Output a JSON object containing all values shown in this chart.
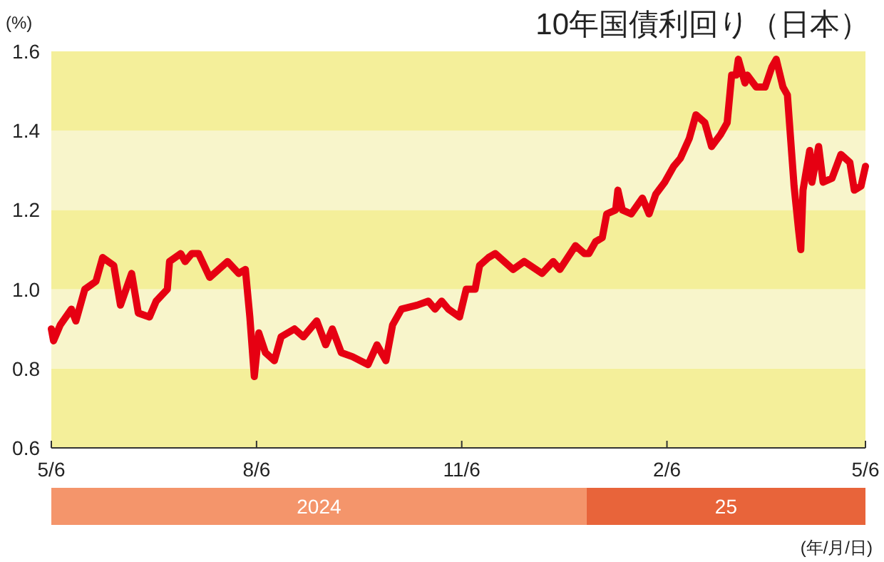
{
  "chart_data": {
    "type": "line",
    "title": "10年国債利回り（日本）",
    "ylabel": "(%)",
    "annotations": [
      "2024",
      "25",
      "(年/月/日)"
    ],
    "x": [
      "2024-05-06",
      "2024-05-07",
      "2024-05-10",
      "2024-05-15",
      "2024-05-17",
      "2024-05-21",
      "2024-05-26",
      "2024-05-29",
      "2024-06-03",
      "2024-06-06",
      "2024-06-11",
      "2024-06-14",
      "2024-06-19",
      "2024-06-22",
      "2024-06-27",
      "2024-06-28",
      "2024-07-03",
      "2024-07-05",
      "2024-07-08",
      "2024-07-11",
      "2024-07-16",
      "2024-07-24",
      "2024-07-29",
      "2024-08-01",
      "2024-08-03",
      "2024-08-05",
      "2024-08-07",
      "2024-08-10",
      "2024-08-14",
      "2024-08-17",
      "2024-08-23",
      "2024-08-27",
      "2024-09-02",
      "2024-09-06",
      "2024-09-09",
      "2024-09-13",
      "2024-09-18",
      "2024-09-25",
      "2024-09-29",
      "2024-10-03",
      "2024-10-06",
      "2024-10-10",
      "2024-10-17",
      "2024-10-22",
      "2024-10-25",
      "2024-10-28",
      "2024-10-31",
      "2024-11-05",
      "2024-11-08",
      "2024-11-12",
      "2024-11-14",
      "2024-11-18",
      "2024-11-21",
      "2024-11-29",
      "2024-12-04",
      "2024-12-12",
      "2024-12-17",
      "2024-12-20",
      "2024-12-27",
      "2024-12-31",
      "2025-01-02",
      "2025-01-05",
      "2025-01-08",
      "2025-01-10",
      "2025-01-14",
      "2025-01-15",
      "2025-01-17",
      "2025-01-21",
      "2025-01-26",
      "2025-01-29",
      "2025-02-01",
      "2025-02-05",
      "2025-02-09",
      "2025-02-12",
      "2025-02-16",
      "2025-02-19",
      "2025-02-23",
      "2025-02-26",
      "2025-03-02",
      "2025-03-05",
      "2025-03-07",
      "2025-03-09",
      "2025-03-10",
      "2025-03-13",
      "2025-03-14",
      "2025-03-18",
      "2025-03-22",
      "2025-03-25",
      "2025-03-27",
      "2025-03-30",
      "2025-04-01",
      "2025-04-04",
      "2025-04-06",
      "2025-04-07",
      "2025-04-08",
      "2025-04-11",
      "2025-04-12",
      "2025-04-15",
      "2025-04-17",
      "2025-04-21",
      "2025-04-25",
      "2025-04-29",
      "2025-05-01",
      "2025-05-04",
      "2025-05-06"
    ],
    "series": [
      {
        "color": "#e60012",
        "values": [
          0.9,
          0.87,
          0.91,
          0.95,
          0.92,
          1.0,
          1.02,
          1.08,
          1.06,
          0.96,
          1.04,
          0.94,
          0.93,
          0.97,
          1.0,
          1.07,
          1.09,
          1.07,
          1.09,
          1.09,
          1.03,
          1.07,
          1.04,
          1.05,
          0.93,
          0.78,
          0.89,
          0.84,
          0.82,
          0.88,
          0.9,
          0.88,
          0.92,
          0.86,
          0.9,
          0.84,
          0.83,
          0.81,
          0.86,
          0.82,
          0.91,
          0.95,
          0.96,
          0.97,
          0.95,
          0.97,
          0.95,
          0.93,
          1.0,
          1.0,
          1.06,
          1.08,
          1.09,
          1.05,
          1.07,
          1.04,
          1.07,
          1.05,
          1.11,
          1.09,
          1.09,
          1.12,
          1.13,
          1.19,
          1.2,
          1.25,
          1.2,
          1.19,
          1.23,
          1.19,
          1.24,
          1.27,
          1.31,
          1.33,
          1.38,
          1.44,
          1.42,
          1.36,
          1.39,
          1.42,
          1.54,
          1.54,
          1.58,
          1.52,
          1.54,
          1.51,
          1.51,
          1.56,
          1.58,
          1.51,
          1.49,
          1.26,
          1.15,
          1.1,
          1.25,
          1.35,
          1.27,
          1.36,
          1.27,
          1.28,
          1.34,
          1.32,
          1.25,
          1.26,
          1.31
        ]
      }
    ],
    "xlim": [
      "2024-05-06",
      "2025-05-06"
    ],
    "xticks": [
      {
        "value": "2024-05-06",
        "label": "5/6"
      },
      {
        "value": "2024-08-06",
        "label": "8/6"
      },
      {
        "value": "2024-11-06",
        "label": "11/6"
      },
      {
        "value": "2025-02-06",
        "label": "2/6"
      },
      {
        "value": "2025-05-06",
        "label": "5/6"
      }
    ],
    "ylim": [
      0.6,
      1.6
    ],
    "yticks": [
      0.6,
      0.8,
      {
        "value": 1,
        "label": "1.0"
      },
      1.2,
      1.4,
      1.6
    ],
    "bands": [
      {
        "axis": "y",
        "from": 0.6,
        "to": 0.8,
        "color": "#f4ef9a"
      },
      {
        "axis": "y",
        "from": 0.8,
        "to": 1.0,
        "color": "#f8f5cb"
      },
      {
        "axis": "y",
        "from": 1.0,
        "to": 1.2,
        "color": "#f4ef9a"
      },
      {
        "axis": "y",
        "from": 1.2,
        "to": 1.4,
        "color": "#f8f5cb"
      },
      {
        "axis": "y",
        "from": 1.4,
        "to": 1.6,
        "color": "#f4ef9a"
      }
    ],
    "grid": false,
    "marker": "none",
    "line_style": "solid"
  }
}
